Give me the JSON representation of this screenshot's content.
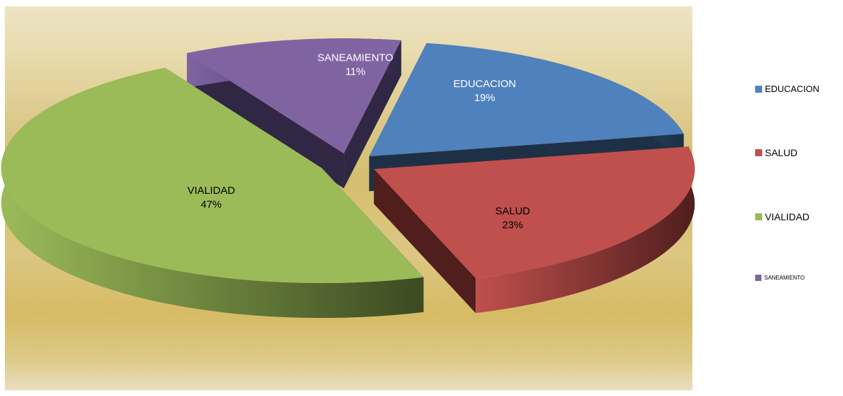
{
  "chart_data": {
    "type": "pie",
    "style": "3d-exploded",
    "categories": [
      "EDUCACION",
      "SALUD",
      "VIALIDAD",
      "SANEAMIENTO"
    ],
    "values": [
      19,
      23,
      47,
      11
    ],
    "value_format": "percent",
    "data_labels": [
      "19%",
      "23%",
      "47%",
      "11%"
    ],
    "colors": [
      "#4f81bd",
      "#c0504d",
      "#9bbb59",
      "#8064a2"
    ],
    "side_colors": [
      "#1d3046",
      "#4f1e1d",
      "#3b4a21",
      "#2f2743"
    ],
    "label_colors": [
      "#ffffff",
      "#000000",
      "#000000",
      "#ffffff"
    ],
    "legend": {
      "placement": "right",
      "entries": [
        "EDUCACION",
        "SALUD",
        "VIALIDAD",
        "SANEAMIENTO"
      ]
    },
    "plot_background": "gold-gradient"
  }
}
